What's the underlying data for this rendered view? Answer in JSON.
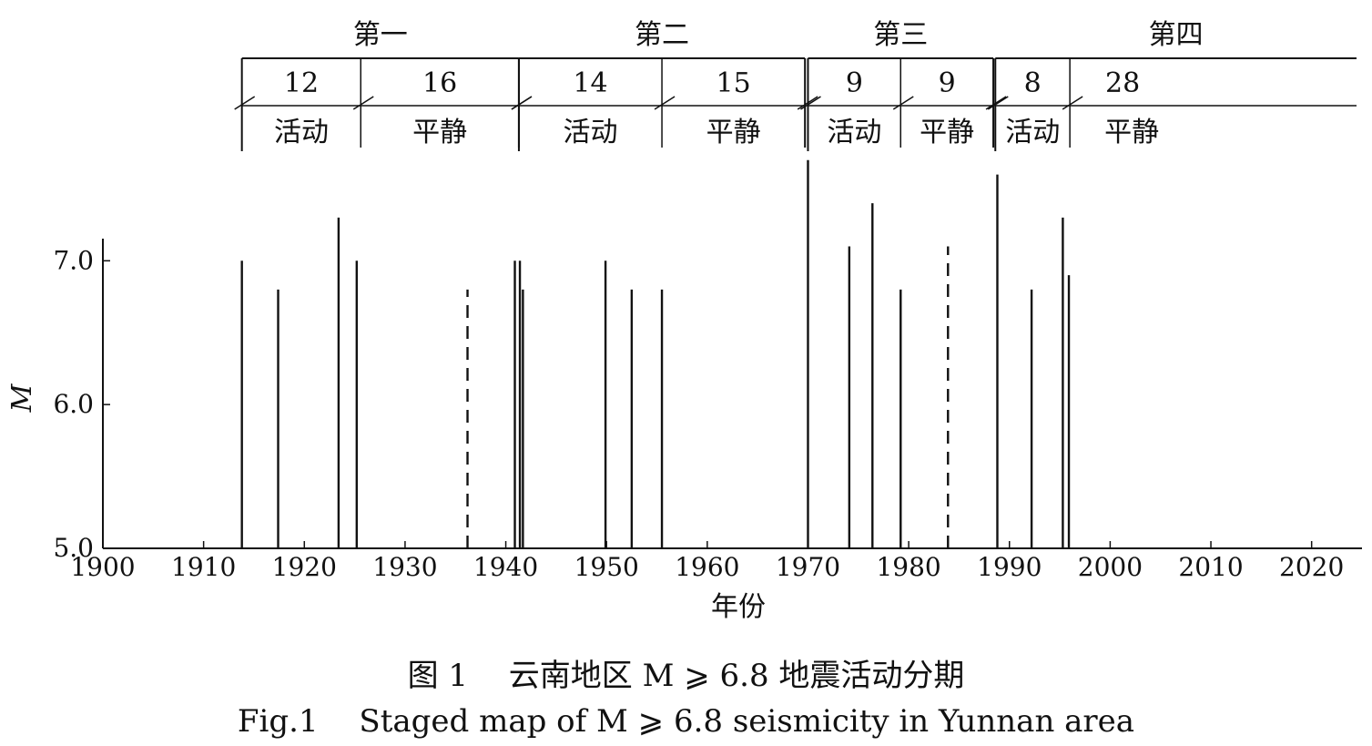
{
  "chart_data": {
    "type": "bar",
    "ylabel": "M",
    "xlabel": "年份",
    "xlim": [
      1900,
      2025
    ],
    "ylim": [
      5.0,
      7.8
    ],
    "x_ticks": [
      1900,
      1910,
      1920,
      1930,
      1940,
      1950,
      1960,
      1970,
      1980,
      1990,
      2000,
      2010,
      2020
    ],
    "x_tick_labels": [
      "1900",
      "1910",
      "1920",
      "1930",
      "1940",
      "1950",
      "1960",
      "1970",
      "1980",
      "1990",
      "2000",
      "2010",
      "2020"
    ],
    "y_ticks": [
      5.0,
      6.0,
      7.0
    ],
    "y_tick_labels": [
      "5.0",
      "6.0",
      "7.0"
    ],
    "events": [
      {
        "year": 1913.8,
        "magnitude": 7.0,
        "style": "solid"
      },
      {
        "year": 1917.4,
        "magnitude": 6.8,
        "style": "solid"
      },
      {
        "year": 1923.4,
        "magnitude": 7.3,
        "style": "solid"
      },
      {
        "year": 1925.2,
        "magnitude": 7.0,
        "style": "solid"
      },
      {
        "year": 1936.2,
        "magnitude": 6.8,
        "style": "dashed"
      },
      {
        "year": 1940.9,
        "magnitude": 7.0,
        "style": "solid"
      },
      {
        "year": 1941.4,
        "magnitude": 7.0,
        "style": "solid"
      },
      {
        "year": 1941.7,
        "magnitude": 6.8,
        "style": "solid"
      },
      {
        "year": 1949.9,
        "magnitude": 7.0,
        "style": "solid"
      },
      {
        "year": 1952.5,
        "magnitude": 6.8,
        "style": "solid"
      },
      {
        "year": 1955.5,
        "magnitude": 6.8,
        "style": "solid"
      },
      {
        "year": 1970.0,
        "magnitude": 7.7,
        "style": "solid"
      },
      {
        "year": 1974.1,
        "magnitude": 7.1,
        "style": "solid"
      },
      {
        "year": 1976.4,
        "magnitude": 7.4,
        "style": "solid"
      },
      {
        "year": 1979.2,
        "magnitude": 6.8,
        "style": "solid"
      },
      {
        "year": 1983.9,
        "magnitude": 7.1,
        "style": "dashed"
      },
      {
        "year": 1988.8,
        "magnitude": 7.6,
        "style": "solid"
      },
      {
        "year": 1992.2,
        "magnitude": 6.8,
        "style": "solid"
      },
      {
        "year": 1995.3,
        "magnitude": 7.3,
        "style": "solid"
      },
      {
        "year": 1995.9,
        "magnitude": 6.9,
        "style": "solid"
      }
    ],
    "periods": [
      {
        "name": "第一",
        "start": 1913.8,
        "split": 1925.6,
        "end": 1941.3,
        "active_years": "12",
        "quiet_years": "16",
        "active_label": "活动",
        "quiet_label": "平静"
      },
      {
        "name": "第二",
        "start": 1941.3,
        "split": 1955.5,
        "end": 1969.7,
        "active_years": "14",
        "quiet_years": "15",
        "active_label": "活动",
        "quiet_label": "平静"
      },
      {
        "name": "第三",
        "start": 1970.0,
        "split": 1979.2,
        "end": 1988.4,
        "active_years": "9",
        "quiet_years": "9",
        "active_label": "活动",
        "quiet_label": "平静"
      },
      {
        "name": "第四",
        "start": 1988.6,
        "split": 1996.0,
        "end": 2024.5,
        "active_years": "8",
        "quiet_years": "28",
        "active_label": "活动",
        "quiet_label": "平静"
      }
    ]
  },
  "caption": {
    "zh": "图 1　 云南地区 M ⩾ 6.8 地震活动分期",
    "en": "Fig.1　 Staged map of M ⩾ 6.8 seismicity in Yunnan area"
  }
}
